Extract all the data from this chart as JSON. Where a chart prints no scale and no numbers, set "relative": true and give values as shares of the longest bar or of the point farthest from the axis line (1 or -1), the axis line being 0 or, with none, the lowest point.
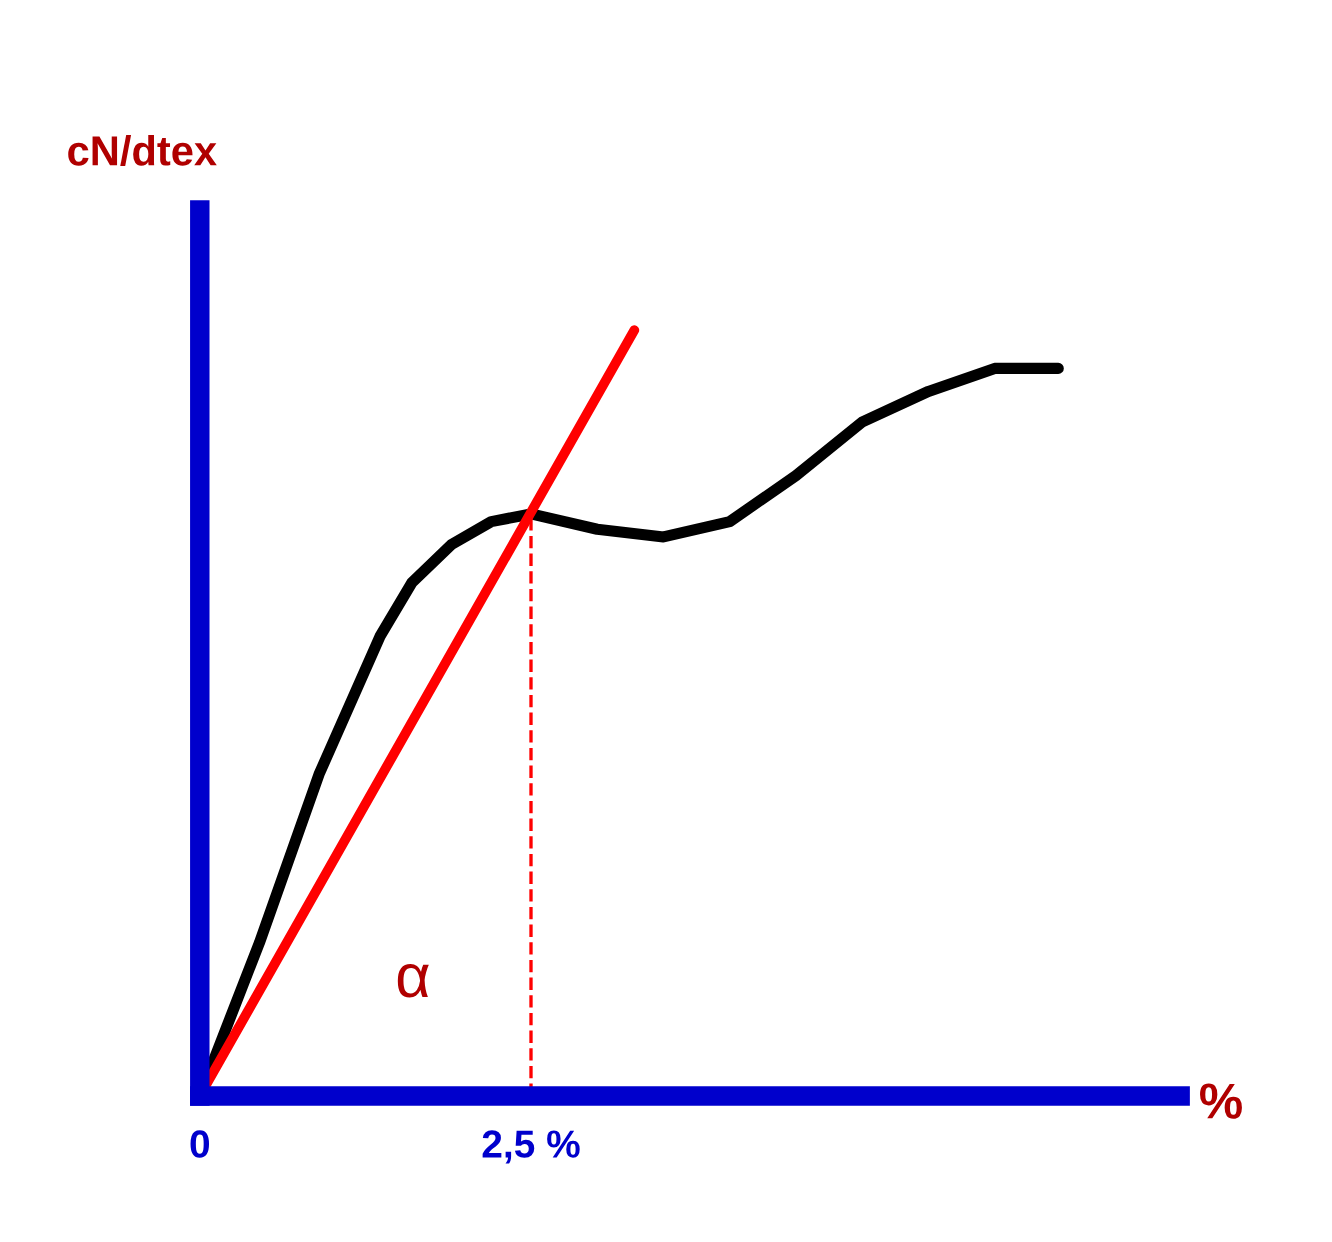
{
  "chart_data": {
    "type": "line",
    "relative": true,
    "xlabel": "%",
    "ylabel": "cN/dtex",
    "xlim": [
      0,
      7.4
    ],
    "xticks": [
      0,
      {
        "value": 2.5,
        "label": "2,5 %"
      }
    ],
    "series": [
      {
        "color": "#000000",
        "x": [
          0,
          0.45,
          0.9,
          1.36,
          1.6,
          1.9,
          2.2,
          2.5,
          3.0,
          3.5,
          4.0,
          4.5,
          5.0,
          5.5,
          6.0,
          6.48
        ],
        "values": [
          0,
          0.2,
          0.42,
          0.6,
          0.67,
          0.72,
          0.75,
          0.76,
          0.74,
          0.73,
          0.75,
          0.81,
          0.88,
          0.92,
          0.95,
          0.95
        ]
      },
      {
        "color": "#ff0000",
        "x": [
          0,
          3.28
        ],
        "values": [
          0,
          1
        ]
      }
    ],
    "ref_lines": [
      {
        "axis": "x",
        "value": 2.5,
        "color": "#ff0000",
        "line_style": "dashed"
      }
    ],
    "annotations": [
      "α"
    ],
    "grid": false,
    "legend": false
  }
}
